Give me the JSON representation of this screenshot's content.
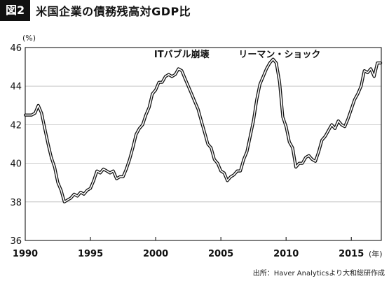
{
  "figure": {
    "badge": "図2",
    "title": "米国企業の債務残高対GDP比"
  },
  "source_note": "出所：Haver Analyticsより大和総研作成",
  "chart_data": {
    "type": "line",
    "title": "米国企業の債務残高対GDP比",
    "ylabel": "(%)",
    "xlabel": "(年)",
    "ylim": [
      36,
      46
    ],
    "xlim": [
      1990,
      2017.3
    ],
    "yticks": [
      36,
      38,
      40,
      42,
      44,
      46
    ],
    "xticks": [
      1990,
      1995,
      2000,
      2005,
      2010,
      2015
    ],
    "grid": "horizontal",
    "annotations": [
      {
        "text": "ITバブル崩壊",
        "x": 2002.0,
        "y": 45.5
      },
      {
        "text": "リーマン・ショック",
        "x": 2009.5,
        "y": 45.5
      }
    ],
    "series": [
      {
        "values": [
          [
            1990.0,
            42.5
          ],
          [
            1990.5,
            42.5
          ],
          [
            1990.75,
            42.6
          ],
          [
            1991.0,
            43.0
          ],
          [
            1991.25,
            42.6
          ],
          [
            1991.5,
            41.8
          ],
          [
            1991.75,
            41.0
          ],
          [
            1992.0,
            40.3
          ],
          [
            1992.25,
            39.8
          ],
          [
            1992.5,
            39.0
          ],
          [
            1992.75,
            38.6
          ],
          [
            1993.0,
            38.0
          ],
          [
            1993.25,
            38.1
          ],
          [
            1993.5,
            38.2
          ],
          [
            1993.75,
            38.4
          ],
          [
            1994.0,
            38.3
          ],
          [
            1994.25,
            38.5
          ],
          [
            1994.5,
            38.4
          ],
          [
            1994.75,
            38.6
          ],
          [
            1995.0,
            38.7
          ],
          [
            1995.25,
            39.1
          ],
          [
            1995.5,
            39.6
          ],
          [
            1995.75,
            39.5
          ],
          [
            1996.0,
            39.7
          ],
          [
            1996.25,
            39.6
          ],
          [
            1996.5,
            39.5
          ],
          [
            1996.75,
            39.6
          ],
          [
            1997.0,
            39.2
          ],
          [
            1997.25,
            39.3
          ],
          [
            1997.5,
            39.3
          ],
          [
            1997.75,
            39.7
          ],
          [
            1998.0,
            40.2
          ],
          [
            1998.25,
            40.8
          ],
          [
            1998.5,
            41.5
          ],
          [
            1998.75,
            41.8
          ],
          [
            1999.0,
            42.0
          ],
          [
            1999.25,
            42.5
          ],
          [
            1999.5,
            42.9
          ],
          [
            1999.75,
            43.6
          ],
          [
            2000.0,
            43.8
          ],
          [
            2000.25,
            44.2
          ],
          [
            2000.5,
            44.2
          ],
          [
            2000.75,
            44.5
          ],
          [
            2001.0,
            44.6
          ],
          [
            2001.25,
            44.5
          ],
          [
            2001.5,
            44.6
          ],
          [
            2001.75,
            44.9
          ],
          [
            2002.0,
            44.8
          ],
          [
            2002.25,
            44.4
          ],
          [
            2002.5,
            44.0
          ],
          [
            2002.75,
            43.6
          ],
          [
            2003.0,
            43.2
          ],
          [
            2003.25,
            42.8
          ],
          [
            2003.5,
            42.2
          ],
          [
            2003.75,
            41.6
          ],
          [
            2004.0,
            41.0
          ],
          [
            2004.25,
            40.8
          ],
          [
            2004.5,
            40.2
          ],
          [
            2004.75,
            40.0
          ],
          [
            2005.0,
            39.6
          ],
          [
            2005.25,
            39.5
          ],
          [
            2005.5,
            39.1
          ],
          [
            2005.75,
            39.3
          ],
          [
            2006.0,
            39.4
          ],
          [
            2006.25,
            39.6
          ],
          [
            2006.5,
            39.6
          ],
          [
            2006.75,
            40.2
          ],
          [
            2007.0,
            40.6
          ],
          [
            2007.25,
            41.4
          ],
          [
            2007.5,
            42.2
          ],
          [
            2007.75,
            43.3
          ],
          [
            2008.0,
            44.1
          ],
          [
            2008.25,
            44.5
          ],
          [
            2008.5,
            44.9
          ],
          [
            2008.75,
            45.2
          ],
          [
            2009.0,
            45.4
          ],
          [
            2009.25,
            45.2
          ],
          [
            2009.5,
            44.2
          ],
          [
            2009.75,
            42.4
          ],
          [
            2010.0,
            41.9
          ],
          [
            2010.25,
            41.1
          ],
          [
            2010.5,
            40.8
          ],
          [
            2010.75,
            39.8
          ],
          [
            2011.0,
            40.0
          ],
          [
            2011.25,
            40.0
          ],
          [
            2011.5,
            40.3
          ],
          [
            2011.75,
            40.4
          ],
          [
            2012.0,
            40.2
          ],
          [
            2012.25,
            40.1
          ],
          [
            2012.5,
            40.6
          ],
          [
            2012.75,
            41.2
          ],
          [
            2013.0,
            41.4
          ],
          [
            2013.25,
            41.7
          ],
          [
            2013.5,
            42.0
          ],
          [
            2013.75,
            41.8
          ],
          [
            2014.0,
            42.2
          ],
          [
            2014.25,
            42.0
          ],
          [
            2014.5,
            41.9
          ],
          [
            2014.75,
            42.3
          ],
          [
            2015.0,
            42.8
          ],
          [
            2015.25,
            43.3
          ],
          [
            2015.5,
            43.6
          ],
          [
            2015.75,
            44.0
          ],
          [
            2016.0,
            44.8
          ],
          [
            2016.25,
            44.7
          ],
          [
            2016.5,
            44.9
          ],
          [
            2016.75,
            44.5
          ],
          [
            2017.0,
            45.2
          ],
          [
            2017.25,
            45.2
          ]
        ]
      }
    ]
  }
}
